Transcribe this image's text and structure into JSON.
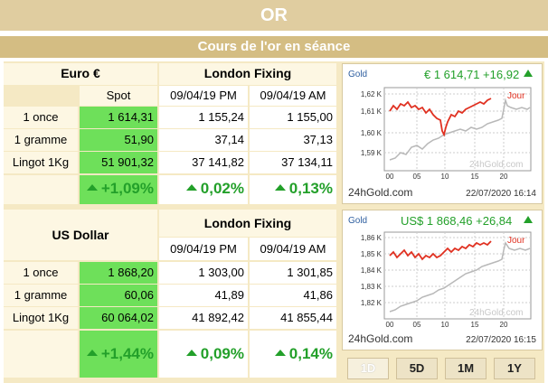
{
  "title": "OR",
  "subtitle": "Cours de l'or en séance",
  "euro": {
    "currency": "Euro €",
    "spot_label": "Spot",
    "fixing_label": "London Fixing",
    "fix_pm": "09/04/19 PM",
    "fix_am": "09/04/19 AM",
    "rows": [
      {
        "label": "1 once",
        "spot": "1 614,31",
        "pm": "1 155,24",
        "am": "1 155,00"
      },
      {
        "label": "1 gramme",
        "spot": "51,90",
        "pm": "37,14",
        "am": "37,13"
      },
      {
        "label": "Lingot 1Kg",
        "spot": "51 901,32",
        "pm": "37 141,82",
        "am": "37 134,11"
      }
    ],
    "pct_spot": "+1,09%",
    "pct_pm": "0,02%",
    "pct_am": "0,13%"
  },
  "usd": {
    "currency": "US Dollar",
    "fixing_label": "London Fixing",
    "fix_pm": "09/04/19 PM",
    "fix_am": "09/04/19 AM",
    "rows": [
      {
        "label": "1 once",
        "spot": "1 868,20",
        "pm": "1 303,00",
        "am": "1 301,85"
      },
      {
        "label": "1 gramme",
        "spot": "60,06",
        "pm": "41,89",
        "am": "41,86"
      },
      {
        "label": "Lingot 1Kg",
        "spot": "60 064,02",
        "pm": "41 892,42",
        "am": "41 855,44"
      }
    ],
    "pct_spot": "+1,44%",
    "pct_pm": "0,09%",
    "pct_am": "0,14%"
  },
  "chart_eur": {
    "label": "Gold",
    "price": "€ 1 614,71 +16,92",
    "jour": "Jour",
    "watermark": "24hGold.com",
    "site": "24hGold.com",
    "date": "22/07/2020 16:14",
    "yticks": [
      "1,62 K",
      "1,61 K",
      "1,60 K",
      "1,59 K"
    ],
    "xticks": [
      "00",
      "05",
      "10",
      "15",
      "20"
    ]
  },
  "chart_usd": {
    "label": "Gold",
    "price": "US$ 1 868,46 +26,84",
    "jour": "Jour",
    "watermark": "24hGold.com",
    "site": "24hGold.com",
    "date": "22/07/2020 16:15",
    "yticks": [
      "1,86 K",
      "1,85 K",
      "1,84 K",
      "1,83 K",
      "1,82 K"
    ],
    "xticks": [
      "00",
      "05",
      "10",
      "15",
      "20"
    ]
  },
  "period_buttons": [
    "1D",
    "5D",
    "1M",
    "1Y"
  ],
  "colors": {
    "green_up": "#23a02a",
    "today_line": "#e03020",
    "prev_line": "#b8b8b8",
    "header": "#e0cda0"
  }
}
